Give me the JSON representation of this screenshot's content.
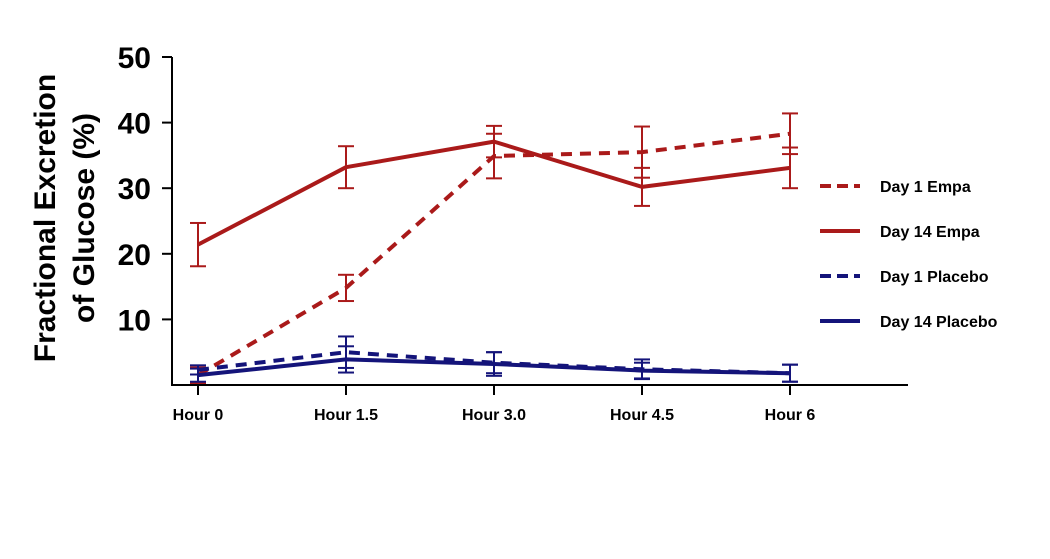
{
  "chart_data": {
    "type": "line",
    "ylabel_lines": [
      "Fractional Excretion",
      "of Glucose (%)"
    ],
    "xlabel": "",
    "categories": [
      "Hour 0",
      "Hour 1.5",
      "Hour 3.0",
      "Hour 4.5",
      "Hour 6"
    ],
    "ylim": [
      0,
      50
    ],
    "yticks": [
      10,
      20,
      30,
      40,
      50
    ],
    "grid": false,
    "legend_position": "right",
    "series": [
      {
        "name": "Day 1 Empa",
        "color": "#aa1a1a",
        "style": "dashed",
        "values": [
          1.5,
          14.8,
          34.9,
          35.5,
          38.3
        ],
        "errors": [
          1.2,
          2.0,
          3.4,
          3.9,
          3.1
        ]
      },
      {
        "name": "Day 14 Empa",
        "color": "#aa1a1a",
        "style": "solid",
        "values": [
          21.4,
          33.2,
          37.1,
          30.2,
          33.1
        ],
        "errors": [
          3.3,
          3.2,
          2.4,
          2.9,
          3.1
        ]
      },
      {
        "name": "Day 1 Placebo",
        "color": "#14147a",
        "style": "dashed",
        "values": [
          2.3,
          5.0,
          3.4,
          2.4,
          1.8
        ],
        "errors": [
          0.7,
          2.4,
          1.6,
          1.5,
          1.3
        ]
      },
      {
        "name": "Day 14 Placebo",
        "color": "#14147a",
        "style": "solid",
        "values": [
          1.5,
          3.9,
          3.2,
          2.2,
          1.8
        ],
        "errors": [
          1.0,
          2.0,
          1.8,
          1.2,
          1.3
        ]
      }
    ]
  }
}
